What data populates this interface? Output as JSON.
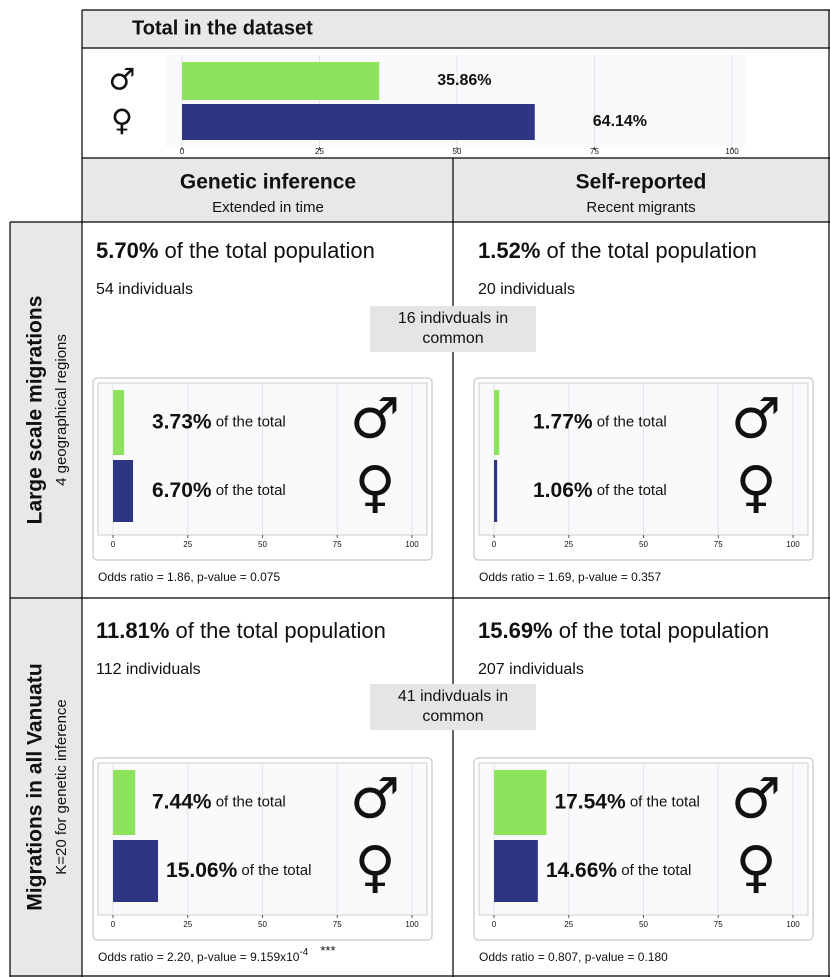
{
  "header": {
    "title": "Total in the dataset"
  },
  "columns": [
    {
      "title": "Genetic inference",
      "subtitle": "Extended in time"
    },
    {
      "title": "Self-reported",
      "subtitle": "Recent migrants"
    }
  ],
  "rows": [
    {
      "title": "Large scale migrations",
      "subtitle": "4 geographical regions"
    },
    {
      "title": "Migrations in all Vanuatu",
      "subtitle": "K=20 for genetic inference"
    }
  ],
  "cells": [
    {
      "percent": "5.70%",
      "percent_suffix": " of the total population",
      "individuals": "54 individuals",
      "odds": "Odds ratio = 1.86, p-value = 0.075"
    },
    {
      "percent": "1.52%",
      "percent_suffix": " of the total population",
      "individuals": "20 individuals",
      "odds": "Odds ratio = 1.69, p-value = 0.357"
    },
    {
      "percent": "11.81%",
      "percent_suffix": " of the total population",
      "individuals": "112 individuals",
      "odds": "Odds ratio = 2.20, p-value = 9.159x10",
      "odds_exponent": "-4",
      "significance": "***"
    },
    {
      "percent": "15.69%",
      "percent_suffix": " of the total population",
      "individuals": "207 individuals",
      "odds": "Odds ratio = 0.807, p-value = 0.180"
    }
  ],
  "common": [
    [
      "16 indivduals in",
      "common"
    ],
    [
      "41 indivduals in",
      "common"
    ]
  ],
  "chart_data": [
    {
      "type": "bar",
      "orientation": "horizontal",
      "categories": [
        "♂",
        "♀"
      ],
      "values": [
        35.86,
        64.14
      ],
      "value_labels": [
        "35.86%",
        "64.14%"
      ],
      "colors": [
        "#8ee35c",
        "#2e3582"
      ],
      "xlim": [
        0,
        100
      ],
      "xticks": [
        0,
        25,
        50,
        75,
        100
      ],
      "grid": true
    },
    {
      "type": "bar",
      "orientation": "horizontal",
      "categories": [
        "♂",
        "♀"
      ],
      "values": [
        3.73,
        6.7
      ],
      "value_labels": [
        "3.73%",
        "6.70%"
      ],
      "label_suffix": " of the total",
      "colors": [
        "#8ee35c",
        "#2e3582"
      ],
      "xlim": [
        0,
        100
      ],
      "xticks": [
        0,
        25,
        50,
        75,
        100
      ],
      "grid": true
    },
    {
      "type": "bar",
      "orientation": "horizontal",
      "categories": [
        "♂",
        "♀"
      ],
      "values": [
        1.77,
        1.06
      ],
      "value_labels": [
        "1.77%",
        "1.06%"
      ],
      "label_suffix": " of the total",
      "colors": [
        "#8ee35c",
        "#2e3582"
      ],
      "xlim": [
        0,
        100
      ],
      "xticks": [
        0,
        25,
        50,
        75,
        100
      ],
      "grid": true
    },
    {
      "type": "bar",
      "orientation": "horizontal",
      "categories": [
        "♂",
        "♀"
      ],
      "values": [
        7.44,
        15.06
      ],
      "value_labels": [
        "7.44%",
        "15.06%"
      ],
      "label_suffix": " of the total",
      "colors": [
        "#8ee35c",
        "#2e3582"
      ],
      "xlim": [
        0,
        100
      ],
      "xticks": [
        0,
        25,
        50,
        75,
        100
      ],
      "grid": true
    },
    {
      "type": "bar",
      "orientation": "horizontal",
      "categories": [
        "♂",
        "♀"
      ],
      "values": [
        17.54,
        14.66
      ],
      "value_labels": [
        "17.54%",
        "14.66%"
      ],
      "label_suffix": " of the total",
      "colors": [
        "#8ee35c",
        "#2e3582"
      ],
      "xlim": [
        0,
        100
      ],
      "xticks": [
        0,
        25,
        50,
        75,
        100
      ],
      "grid": true
    }
  ]
}
